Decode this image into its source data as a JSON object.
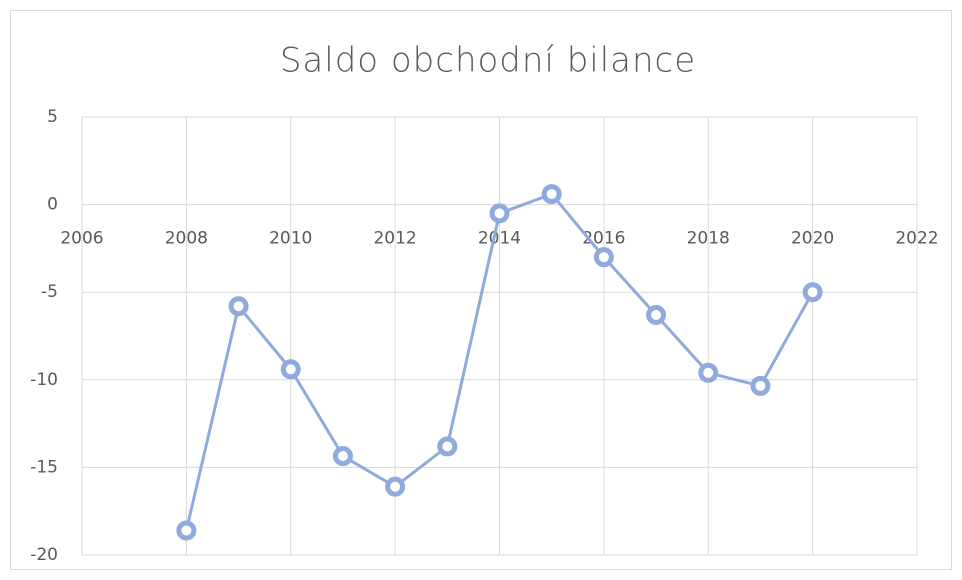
{
  "chart_data": {
    "type": "line",
    "title": "Saldo obchodní bilance",
    "x": [
      2008,
      2009,
      2010,
      2011,
      2012,
      2013,
      2014,
      2015,
      2016,
      2017,
      2018,
      2019,
      2020
    ],
    "series": [
      {
        "name": "Saldo obchodní bilance",
        "color": "#8faadc",
        "values": [
          -18.6,
          -5.8,
          -9.4,
          -14.35,
          -16.1,
          -13.8,
          -0.5,
          0.6,
          -3.0,
          -6.3,
          -9.6,
          -10.35,
          -5.0
        ]
      }
    ],
    "xlim": [
      2006,
      2022
    ],
    "xticks": [
      2006,
      2008,
      2010,
      2012,
      2014,
      2016,
      2018,
      2020,
      2022
    ],
    "ylim": [
      -20,
      5
    ],
    "yticks": [
      -20,
      -15,
      -10,
      -5,
      0,
      5
    ],
    "grid": true
  }
}
